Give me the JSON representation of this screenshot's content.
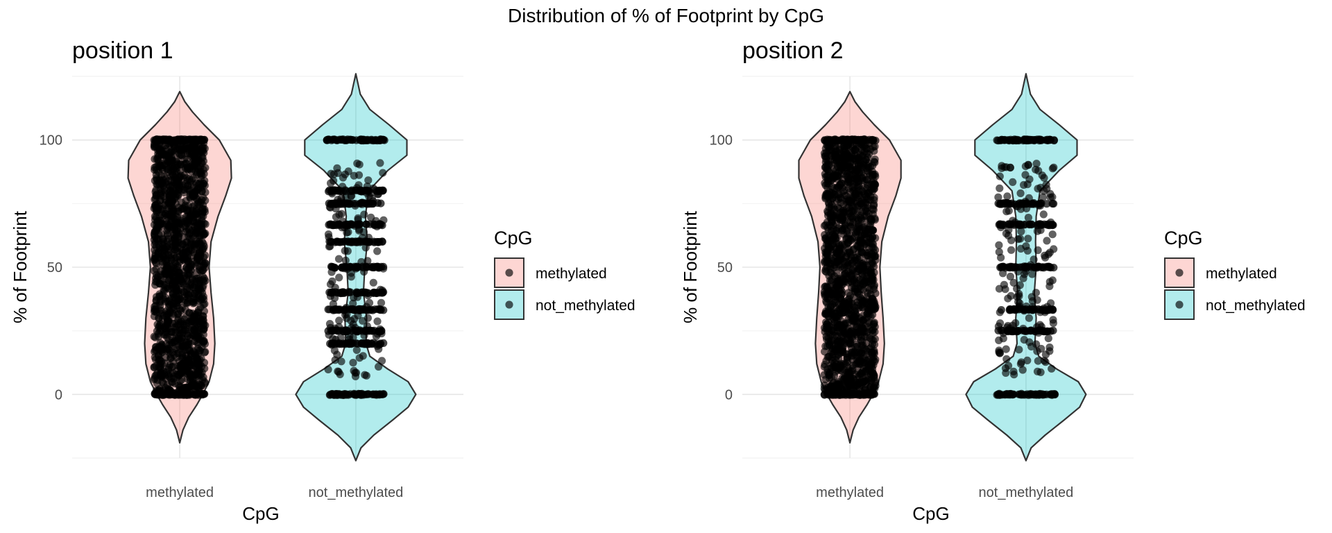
{
  "title": "Distribution of % of Footprint by CpG",
  "colors": {
    "methylated": "#F8766D",
    "not_methylated": "#00BFC4",
    "outline": "#333333",
    "points": "#000000"
  },
  "chart_data": [
    {
      "type": "violin",
      "title": "position 1",
      "xlabel": "CpG",
      "ylabel": "% of Footprint",
      "ylim": [
        -25,
        125
      ],
      "yticks": [
        0,
        50,
        100
      ],
      "grid": true,
      "categories": [
        "methylated",
        "not_methylated"
      ],
      "legend": {
        "title": "CpG",
        "position": "right",
        "entries": [
          "methylated",
          "not_methylated"
        ]
      },
      "violins": [
        {
          "category": "methylated",
          "range": [
            -19,
            119
          ],
          "profile": [
            [
              -19,
              0.0
            ],
            [
              -14,
              0.05
            ],
            [
              -9,
              0.14
            ],
            [
              -4,
              0.27
            ],
            [
              0,
              0.36
            ],
            [
              5,
              0.46
            ],
            [
              12,
              0.53
            ],
            [
              20,
              0.55
            ],
            [
              30,
              0.53
            ],
            [
              40,
              0.49
            ],
            [
              50,
              0.46
            ],
            [
              60,
              0.49
            ],
            [
              70,
              0.6
            ],
            [
              78,
              0.72
            ],
            [
              85,
              0.81
            ],
            [
              92,
              0.8
            ],
            [
              100,
              0.62
            ],
            [
              106,
              0.38
            ],
            [
              111,
              0.2
            ],
            [
              115,
              0.08
            ],
            [
              119,
              0.0
            ]
          ]
        },
        {
          "category": "not_methylated",
          "range": [
            -26,
            126
          ],
          "profile": [
            [
              -26,
              0.0
            ],
            [
              -21,
              0.08
            ],
            [
              -16,
              0.28
            ],
            [
              -10,
              0.58
            ],
            [
              -5,
              0.82
            ],
            [
              0,
              0.94
            ],
            [
              5,
              0.82
            ],
            [
              10,
              0.5
            ],
            [
              15,
              0.22
            ],
            [
              20,
              0.16
            ],
            [
              30,
              0.17
            ],
            [
              40,
              0.12
            ],
            [
              50,
              0.14
            ],
            [
              60,
              0.18
            ],
            [
              70,
              0.15
            ],
            [
              80,
              0.2
            ],
            [
              88,
              0.5
            ],
            [
              94,
              0.8
            ],
            [
              100,
              0.8
            ],
            [
              106,
              0.52
            ],
            [
              112,
              0.22
            ],
            [
              118,
              0.07
            ],
            [
              126,
              0.0
            ]
          ]
        }
      ],
      "stripes": {
        "methylated": [
          0,
          100
        ],
        "not_methylated": [
          0,
          20,
          25,
          33.3,
          40,
          50,
          60,
          66.7,
          75,
          80,
          100
        ]
      }
    },
    {
      "type": "violin",
      "title": "position 2",
      "xlabel": "CpG",
      "ylabel": "% of Footprint",
      "ylim": [
        -25,
        125
      ],
      "yticks": [
        0,
        50,
        100
      ],
      "grid": true,
      "categories": [
        "methylated",
        "not_methylated"
      ],
      "legend": {
        "title": "CpG",
        "position": "right",
        "entries": [
          "methylated",
          "not_methylated"
        ]
      },
      "violins": [
        {
          "category": "methylated",
          "range": [
            -19,
            119
          ],
          "profile": [
            [
              -19,
              0.0
            ],
            [
              -14,
              0.05
            ],
            [
              -9,
              0.14
            ],
            [
              -4,
              0.27
            ],
            [
              0,
              0.36
            ],
            [
              5,
              0.45
            ],
            [
              12,
              0.52
            ],
            [
              20,
              0.54
            ],
            [
              30,
              0.52
            ],
            [
              40,
              0.49
            ],
            [
              50,
              0.47
            ],
            [
              60,
              0.5
            ],
            [
              70,
              0.6
            ],
            [
              78,
              0.72
            ],
            [
              85,
              0.8
            ],
            [
              92,
              0.8
            ],
            [
              100,
              0.62
            ],
            [
              106,
              0.38
            ],
            [
              111,
              0.2
            ],
            [
              115,
              0.08
            ],
            [
              119,
              0.0
            ]
          ]
        },
        {
          "category": "not_methylated",
          "range": [
            -26,
            126
          ],
          "profile": [
            [
              -26,
              0.0
            ],
            [
              -21,
              0.08
            ],
            [
              -16,
              0.3
            ],
            [
              -10,
              0.6
            ],
            [
              -5,
              0.84
            ],
            [
              0,
              0.94
            ],
            [
              5,
              0.82
            ],
            [
              10,
              0.48
            ],
            [
              15,
              0.2
            ],
            [
              20,
              0.14
            ],
            [
              30,
              0.16
            ],
            [
              40,
              0.13
            ],
            [
              50,
              0.16
            ],
            [
              60,
              0.15
            ],
            [
              70,
              0.16
            ],
            [
              80,
              0.22
            ],
            [
              88,
              0.52
            ],
            [
              94,
              0.8
            ],
            [
              100,
              0.8
            ],
            [
              106,
              0.52
            ],
            [
              112,
              0.22
            ],
            [
              118,
              0.07
            ],
            [
              126,
              0.0
            ]
          ]
        }
      ],
      "stripes": {
        "methylated": [
          0,
          100
        ],
        "not_methylated": [
          0,
          25,
          33.3,
          50,
          66.7,
          75,
          100
        ]
      }
    }
  ]
}
